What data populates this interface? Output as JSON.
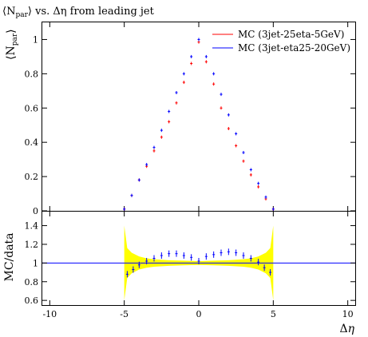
{
  "chart_data": [
    {
      "type": "scatter",
      "title_prefix": "⟨N",
      "title_subscript": "par",
      "title_suffix": "⟩ vs. Δη from leading jet",
      "ylabel_prefix": "⟨N",
      "ylabel_subscript": "par",
      "ylabel_suffix": "⟩",
      "xlabel": "",
      "xlim": [
        -10.5,
        10.5
      ],
      "ylim": [
        0,
        1.1
      ],
      "yticks": [
        0,
        0.2,
        0.4,
        0.6,
        0.8,
        1
      ],
      "ytick_labels": [
        "0",
        "0.2",
        "0.4",
        "0.6",
        "0.8",
        "1"
      ],
      "grid": false,
      "legend_position": "top-right",
      "series": [
        {
          "name": "MC (3jet-25eta-5GeV)",
          "color": "#ff0000",
          "x": [
            -5.0,
            -4.5,
            -4.0,
            -3.5,
            -3.0,
            -2.5,
            -2.0,
            -1.5,
            -1.0,
            -0.5,
            0.0,
            0.5,
            1.0,
            1.5,
            2.0,
            2.5,
            3.0,
            3.5,
            4.0,
            4.5,
            5.0
          ],
          "y": [
            0.01,
            0.09,
            0.18,
            0.26,
            0.35,
            0.43,
            0.52,
            0.63,
            0.75,
            0.86,
            0.985,
            0.87,
            0.74,
            0.6,
            0.48,
            0.38,
            0.29,
            0.21,
            0.14,
            0.07,
            0.01
          ]
        },
        {
          "name": "MC (3jet-eta25-20GeV)",
          "color": "#0000ff",
          "x": [
            -5.0,
            -4.5,
            -4.0,
            -3.5,
            -3.0,
            -2.5,
            -2.0,
            -1.5,
            -1.0,
            -0.5,
            0.0,
            0.5,
            1.0,
            1.5,
            2.0,
            2.5,
            3.0,
            3.5,
            4.0,
            4.5,
            5.0
          ],
          "y": [
            0.01,
            0.09,
            0.18,
            0.27,
            0.37,
            0.47,
            0.58,
            0.69,
            0.8,
            0.9,
            1.0,
            0.9,
            0.8,
            0.68,
            0.56,
            0.45,
            0.34,
            0.24,
            0.16,
            0.08,
            0.01
          ]
        }
      ]
    },
    {
      "type": "scatter",
      "ylabel": "MC/data",
      "xlabel_prefix": "Δ",
      "xlabel_italic": "η",
      "xlim": [
        -10.5,
        10.5
      ],
      "ylim": [
        0.55,
        1.55
      ],
      "xticks": [
        -10,
        -5,
        0,
        5,
        10
      ],
      "xtick_labels": [
        "-10",
        "-5",
        "0",
        "5",
        "10"
      ],
      "yticks": [
        0.6,
        0.8,
        1,
        1.2,
        1.4
      ],
      "ytick_labels": [
        "0.6",
        "0.8",
        "1",
        "1.2",
        "1.4"
      ],
      "reference_line": 1,
      "band": {
        "color": "#ffff00",
        "x": [
          -5.0,
          -4.8,
          -4.5,
          -4.0,
          -3.5,
          -3.0,
          -2.0,
          -1.0,
          0.0,
          1.0,
          2.0,
          3.0,
          3.5,
          4.0,
          4.5,
          4.8,
          5.0
        ],
        "lower": [
          0.6,
          0.84,
          0.89,
          0.93,
          0.95,
          0.96,
          0.97,
          0.975,
          0.98,
          0.975,
          0.97,
          0.96,
          0.95,
          0.93,
          0.89,
          0.84,
          0.6
        ],
        "upper": [
          1.4,
          1.16,
          1.11,
          1.07,
          1.05,
          1.04,
          1.03,
          1.025,
          1.02,
          1.025,
          1.03,
          1.04,
          1.05,
          1.07,
          1.11,
          1.16,
          1.4
        ]
      },
      "series": [
        {
          "name": "MC (3jet-eta25-20GeV)",
          "color": "#0000ff",
          "x": [
            -4.8,
            -4.4,
            -4.0,
            -3.5,
            -3.0,
            -2.5,
            -2.0,
            -1.5,
            -1.0,
            -0.5,
            0.0,
            0.5,
            1.0,
            1.5,
            2.0,
            2.5,
            3.0,
            3.5,
            4.0,
            4.4,
            4.8
          ],
          "y": [
            0.88,
            0.93,
            0.98,
            1.02,
            1.05,
            1.08,
            1.1,
            1.1,
            1.08,
            1.06,
            1.02,
            1.07,
            1.09,
            1.11,
            1.12,
            1.11,
            1.08,
            1.05,
            1.01,
            0.95,
            0.9
          ]
        }
      ]
    }
  ]
}
